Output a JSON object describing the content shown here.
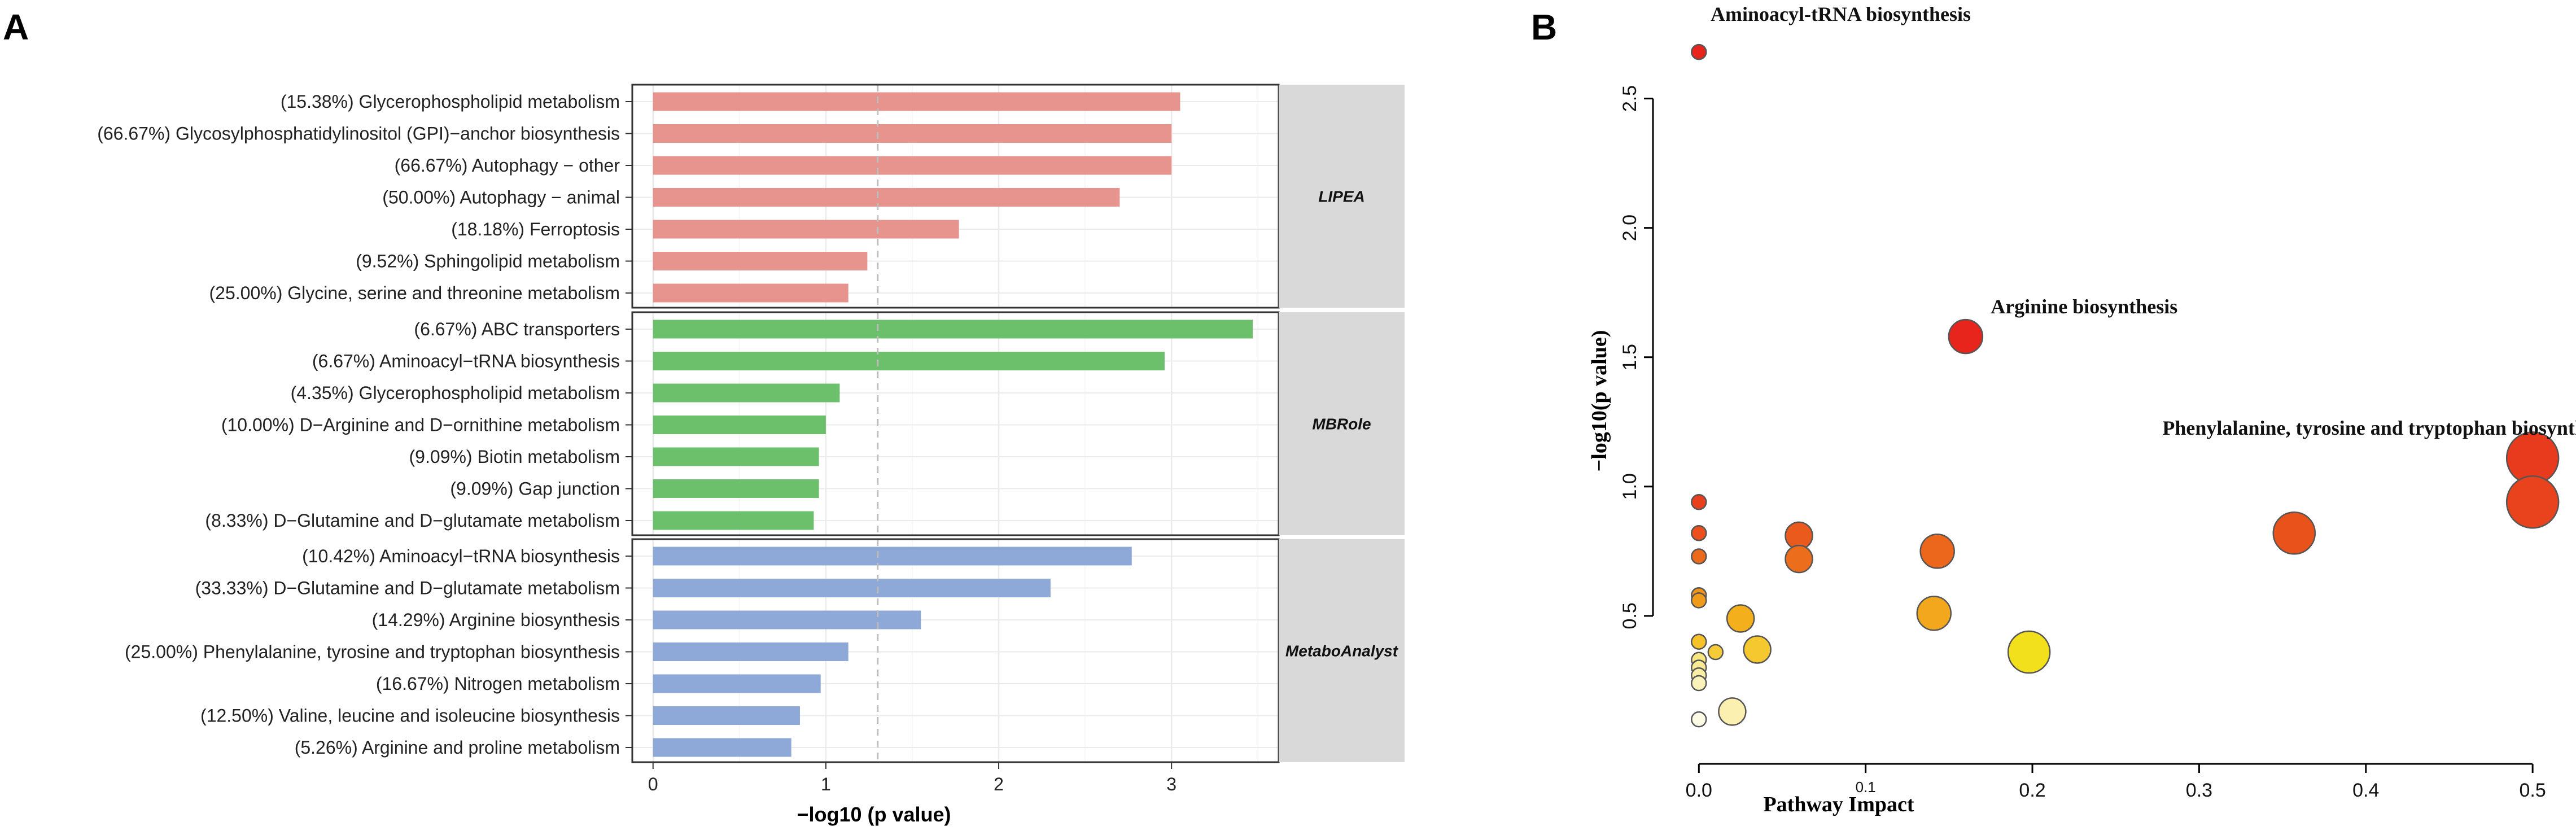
{
  "panels": {
    "a": {
      "letter": "A"
    },
    "b": {
      "letter": "B"
    }
  },
  "colors": {
    "LIPEA": "#e8948e",
    "MBRole": "#6cc06c",
    "MetaboAnalyst": "#8ea9d8",
    "facet_strip": "#d9d9d9",
    "grid": "#ebebeb",
    "threshold": "#bdbdbd"
  },
  "chart_data": [
    {
      "type": "bar",
      "orientation": "horizontal",
      "title": "",
      "xlabel": "−log10 (p value)",
      "ylabel": "",
      "xlim": [
        -0.12,
        3.62
      ],
      "xticks": [
        "0",
        "1",
        "2",
        "3"
      ],
      "threshold": 1.3,
      "grid": true,
      "facets": [
        {
          "name": "LIPEA",
          "categories": [
            "(15.38%) Glycerophospholipid metabolism",
            "(66.67%) Glycosylphosphatidylinositol (GPI)−anchor biosynthesis",
            "(66.67%) Autophagy − other",
            "(50.00%) Autophagy − animal",
            "(18.18%) Ferroptosis",
            "(9.52%) Sphingolipid metabolism",
            "(25.00%) Glycine, serine and threonine metabolism"
          ],
          "values": [
            3.05,
            3.0,
            3.0,
            2.7,
            1.77,
            1.24,
            1.13
          ]
        },
        {
          "name": "MBRole",
          "categories": [
            "(6.67%) ABC transporters",
            "(6.67%) Aminoacyl−tRNA biosynthesis",
            "(4.35%) Glycerophospholipid metabolism",
            "(10.00%) D−Arginine and D−ornithine metabolism",
            "(9.09%) Biotin metabolism",
            "(9.09%) Gap junction",
            "(8.33%) D−Glutamine and D−glutamate metabolism"
          ],
          "values": [
            3.47,
            2.96,
            1.08,
            1.0,
            0.96,
            0.96,
            0.93
          ]
        },
        {
          "name": "MetaboAnalyst",
          "categories": [
            "(10.42%) Aminoacyl−tRNA biosynthesis",
            "(33.33%) D−Glutamine and D−glutamate metabolism",
            "(14.29%) Arginine biosynthesis",
            "(25.00%) Phenylalanine, tyrosine and tryptophan biosynthesis",
            "(16.67%) Nitrogen metabolism",
            "(12.50%) Valine, leucine and isoleucine biosynthesis",
            "(5.26%) Arginine and proline metabolism"
          ],
          "values": [
            2.77,
            2.3,
            1.55,
            1.13,
            0.97,
            0.85,
            0.8
          ]
        }
      ]
    },
    {
      "type": "scatter",
      "title": "",
      "xlabel": "Pathway Impact",
      "ylabel": "−log10(p value)",
      "xlim": [
        -0.015,
        0.525
      ],
      "ylim": [
        0.0,
        2.75
      ],
      "xticks": [
        {
          "value": 0.0,
          "label": "0.0"
        },
        {
          "value": 0.1,
          "label": "0.1"
        },
        {
          "value": 0.2,
          "label": "0.2"
        },
        {
          "value": 0.3,
          "label": "0.3"
        },
        {
          "value": 0.4,
          "label": "0.4"
        },
        {
          "value": 0.5,
          "label": "0.5"
        }
      ],
      "yticks": [
        {
          "value": 0.5,
          "label": "0.5"
        },
        {
          "value": 1.0,
          "label": "1.0"
        },
        {
          "value": 1.5,
          "label": "1.5"
        },
        {
          "value": 2.0,
          "label": "2.0"
        },
        {
          "value": 2.5,
          "label": "2.5"
        }
      ],
      "grid": false,
      "points": [
        {
          "x": 0.0,
          "y": 2.68,
          "size": 1,
          "color": "#e8251c"
        },
        {
          "x": 0.16,
          "y": 1.58,
          "size": 3,
          "color": "#e8251c"
        },
        {
          "x": 0.5,
          "y": 1.11,
          "size": 5,
          "color": "#e83a1c"
        },
        {
          "x": 0.5,
          "y": 0.94,
          "size": 5,
          "color": "#e8431c"
        },
        {
          "x": 0.357,
          "y": 0.82,
          "size": 4,
          "color": "#ea521c"
        },
        {
          "x": 0.0,
          "y": 0.94,
          "size": 1,
          "color": "#e8401c"
        },
        {
          "x": 0.0,
          "y": 0.82,
          "size": 1,
          "color": "#ea4f1c"
        },
        {
          "x": 0.0,
          "y": 0.73,
          "size": 1,
          "color": "#ec6a1c"
        },
        {
          "x": 0.06,
          "y": 0.81,
          "size": 2,
          "color": "#ea5a1c"
        },
        {
          "x": 0.06,
          "y": 0.72,
          "size": 2,
          "color": "#ec6e1c"
        },
        {
          "x": 0.143,
          "y": 0.75,
          "size": 3,
          "color": "#ec661c"
        },
        {
          "x": 0.141,
          "y": 0.51,
          "size": 3,
          "color": "#f2a71c"
        },
        {
          "x": 0.0,
          "y": 0.58,
          "size": 1,
          "color": "#f0941c"
        },
        {
          "x": 0.0,
          "y": 0.56,
          "size": 1,
          "color": "#f09a1c"
        },
        {
          "x": 0.025,
          "y": 0.49,
          "size": 2,
          "color": "#f4b01c"
        },
        {
          "x": 0.0,
          "y": 0.4,
          "size": 1,
          "color": "#f5c22a"
        },
        {
          "x": 0.01,
          "y": 0.36,
          "size": 1,
          "color": "#f5cc38"
        },
        {
          "x": 0.035,
          "y": 0.37,
          "size": 2,
          "color": "#f5c830"
        },
        {
          "x": 0.198,
          "y": 0.36,
          "size": 4,
          "color": "#f2e01c"
        },
        {
          "x": 0.0,
          "y": 0.33,
          "size": 1,
          "color": "#f8e680"
        },
        {
          "x": 0.0,
          "y": 0.3,
          "size": 1,
          "color": "#f9ea94"
        },
        {
          "x": 0.0,
          "y": 0.27,
          "size": 1,
          "color": "#faeea6"
        },
        {
          "x": 0.0,
          "y": 0.24,
          "size": 1,
          "color": "#fbf2ba"
        },
        {
          "x": 0.02,
          "y": 0.13,
          "size": 2,
          "color": "#fbf0b0"
        },
        {
          "x": 0.0,
          "y": 0.1,
          "size": 1,
          "color": "#fdfae6"
        }
      ],
      "annotations": [
        {
          "text": "Aminoacyl-tRNA biosynthesis",
          "x": 0.007,
          "y": 2.8
        },
        {
          "text": "Arginine biosynthesis",
          "x": 0.175,
          "y": 1.67
        },
        {
          "text": "Phenylalanine, tyrosine and tryptophan biosynthesis",
          "x": 0.278,
          "y": 1.2
        }
      ]
    }
  ]
}
